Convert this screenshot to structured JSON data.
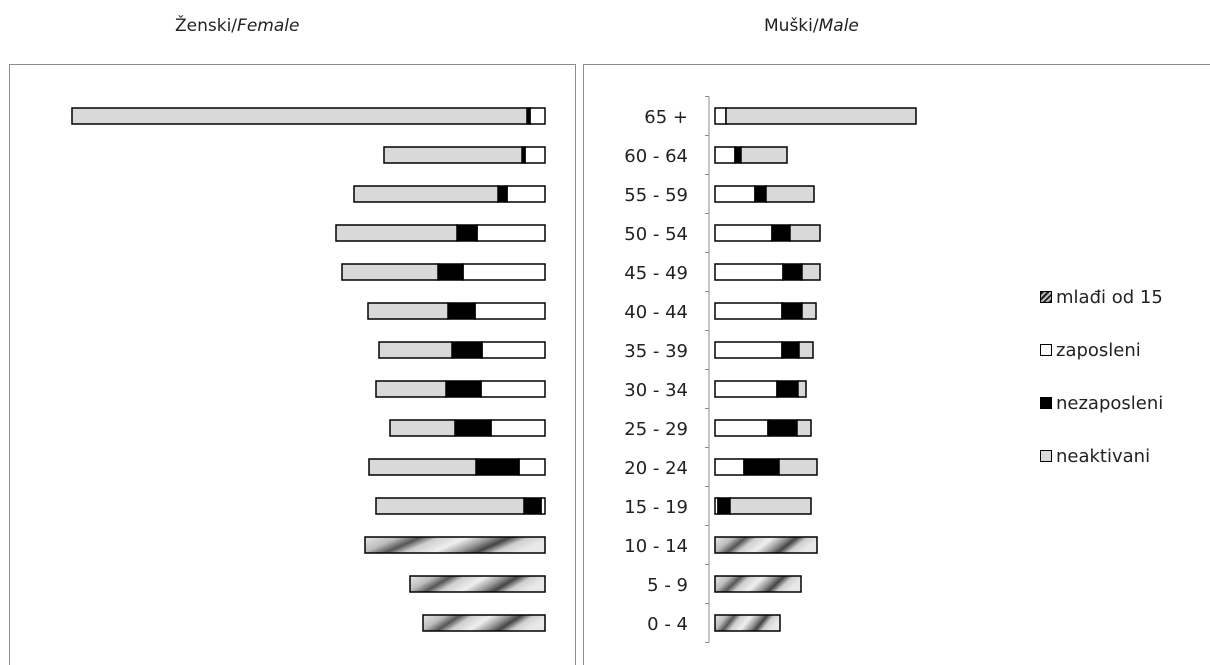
{
  "panels": {
    "female_label": "Ženski/",
    "female_label_en": "Female",
    "male_label": "Muški/",
    "male_label_en": "Male"
  },
  "legend": [
    {
      "key": "under15",
      "label": "mlađi od 15"
    },
    {
      "key": "employed",
      "label": "zaposleni"
    },
    {
      "key": "unemployed",
      "label": "nezaposleni"
    },
    {
      "key": "inactive",
      "label": "neaktivani"
    }
  ],
  "colors": {
    "employed": "#ffffff",
    "unemployed": "#000000",
    "inactive": "#d9d9d9",
    "under15_a": "#3a3a3a",
    "under15_b": "#c8c8c8",
    "outline": "#000000"
  },
  "chart_data": {
    "type": "bar",
    "orientation": "horizontal",
    "stacked": true,
    "layout": "population-pyramid",
    "categories": [
      "65 +",
      "60 - 64",
      "55 - 59",
      "50 - 54",
      "45 - 49",
      "40 - 44",
      "35 - 39",
      "30 - 34",
      "25 - 29",
      "20 - 24",
      "15 - 19",
      "10 - 14",
      "5 - 9",
      "0 - 4"
    ],
    "female": [
      {
        "under15": 0,
        "employed": 15,
        "unemployed": 3,
        "inactive": 455
      },
      {
        "under15": 0,
        "employed": 20,
        "unemployed": 3,
        "inactive": 138
      },
      {
        "under15": 0,
        "employed": 38,
        "unemployed": 9,
        "inactive": 144
      },
      {
        "under15": 0,
        "employed": 68,
        "unemployed": 20,
        "inactive": 121
      },
      {
        "under15": 0,
        "employed": 82,
        "unemployed": 25,
        "inactive": 96
      },
      {
        "under15": 0,
        "employed": 70,
        "unemployed": 27,
        "inactive": 80
      },
      {
        "under15": 0,
        "employed": 63,
        "unemployed": 30,
        "inactive": 73
      },
      {
        "under15": 0,
        "employed": 64,
        "unemployed": 35,
        "inactive": 70
      },
      {
        "under15": 0,
        "employed": 54,
        "unemployed": 36,
        "inactive": 65
      },
      {
        "under15": 0,
        "employed": 26,
        "unemployed": 43,
        "inactive": 107
      },
      {
        "under15": 0,
        "employed": 4,
        "unemployed": 17,
        "inactive": 148
      },
      {
        "under15": 180,
        "employed": 0,
        "unemployed": 0,
        "inactive": 0
      },
      {
        "under15": 135,
        "employed": 0,
        "unemployed": 0,
        "inactive": 0
      },
      {
        "under15": 122,
        "employed": 0,
        "unemployed": 0,
        "inactive": 0
      }
    ],
    "male": [
      {
        "under15": 0,
        "employed": 11,
        "unemployed": 0,
        "inactive": 190
      },
      {
        "under15": 0,
        "employed": 20,
        "unemployed": 6,
        "inactive": 46
      },
      {
        "under15": 0,
        "employed": 40,
        "unemployed": 11,
        "inactive": 48
      },
      {
        "under15": 0,
        "employed": 57,
        "unemployed": 18,
        "inactive": 30
      },
      {
        "under15": 0,
        "employed": 68,
        "unemployed": 19,
        "inactive": 18
      },
      {
        "under15": 0,
        "employed": 67,
        "unemployed": 20,
        "inactive": 14
      },
      {
        "under15": 0,
        "employed": 67,
        "unemployed": 17,
        "inactive": 14
      },
      {
        "under15": 0,
        "employed": 62,
        "unemployed": 21,
        "inactive": 8
      },
      {
        "under15": 0,
        "employed": 53,
        "unemployed": 29,
        "inactive": 14
      },
      {
        "under15": 0,
        "employed": 29,
        "unemployed": 35,
        "inactive": 38
      },
      {
        "under15": 0,
        "employed": 3,
        "unemployed": 12,
        "inactive": 81
      },
      {
        "under15": 102,
        "employed": 0,
        "unemployed": 0,
        "inactive": 0
      },
      {
        "under15": 86,
        "employed": 0,
        "unemployed": 0,
        "inactive": 0
      },
      {
        "under15": 65,
        "employed": 0,
        "unemployed": 0,
        "inactive": 0
      }
    ],
    "segment_order": [
      "under15",
      "employed",
      "unemployed",
      "inactive"
    ],
    "grid": false,
    "legend_position": "right"
  }
}
